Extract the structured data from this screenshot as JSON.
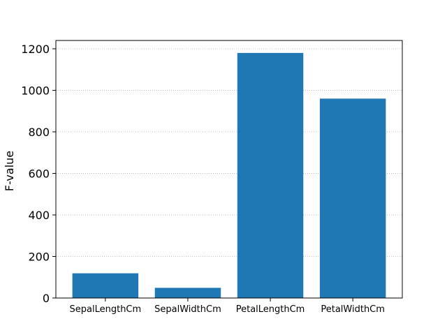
{
  "chart_data": {
    "type": "bar",
    "title": "",
    "xlabel": "",
    "ylabel": "F-value",
    "categories": [
      "SepalLengthCm",
      "SepalWidthCm",
      "PetalLengthCm",
      "PetalWidthCm"
    ],
    "values": [
      119,
      49,
      1180,
      960
    ],
    "ylim": [
      0,
      1240
    ],
    "yticks": [
      0,
      200,
      400,
      600,
      800,
      1000,
      1200
    ],
    "grid": "y-dotted",
    "bar_color": "#1f77b4",
    "grid_color": "#b0b0b0"
  }
}
